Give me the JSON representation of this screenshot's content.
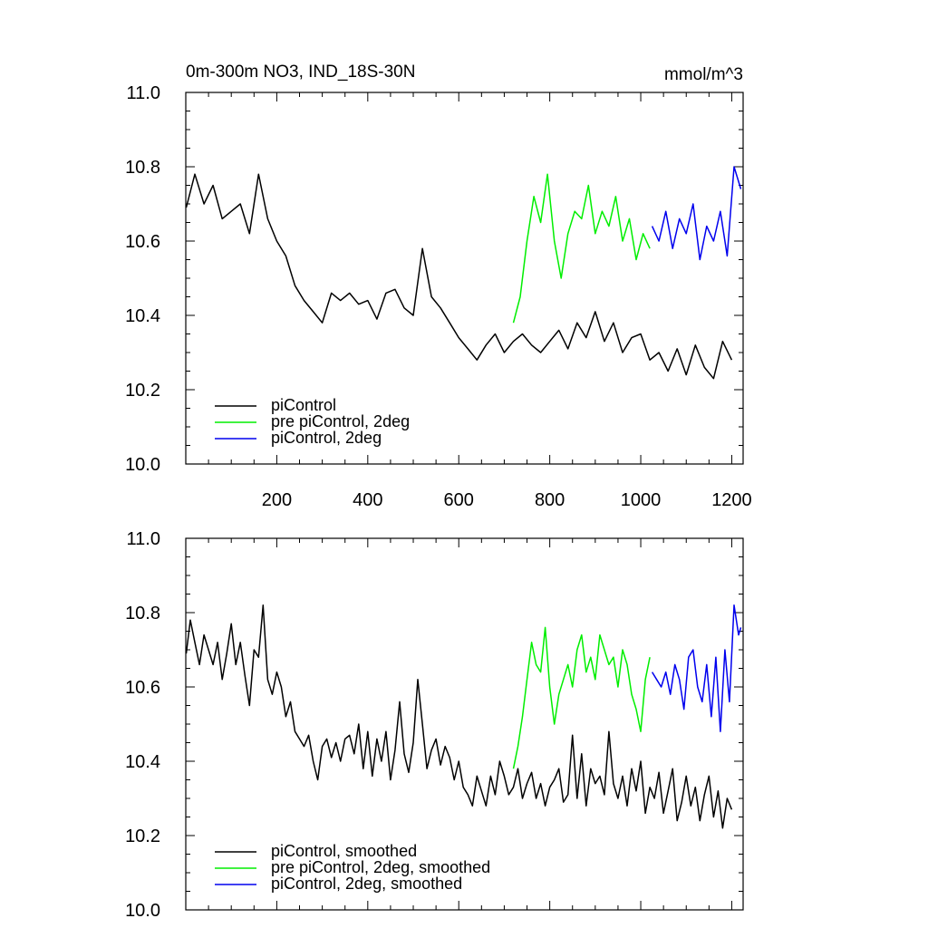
{
  "chart_data": [
    {
      "type": "line",
      "title": "0m-300m NO3, IND_18S-30N",
      "units": "mmol/m^3",
      "xlabel": "",
      "ylabel": "",
      "xlim": [
        0,
        1225
      ],
      "ylim": [
        10.0,
        11.0
      ],
      "xticks": [
        200,
        400,
        600,
        800,
        1000,
        1200
      ],
      "yticks": [
        10.0,
        10.2,
        10.4,
        10.6,
        10.8,
        11.0
      ],
      "show_x_tick_labels": true,
      "legend": {
        "position": "bottom-left"
      },
      "series": [
        {
          "name": "piControl",
          "color": "#000000",
          "x": [
            1,
            20,
            40,
            60,
            80,
            100,
            120,
            140,
            160,
            180,
            200,
            220,
            240,
            260,
            280,
            300,
            320,
            340,
            360,
            380,
            400,
            420,
            440,
            460,
            480,
            500,
            520,
            540,
            560,
            580,
            600,
            620,
            640,
            660,
            680,
            700,
            720,
            740,
            760,
            780,
            800,
            820,
            840,
            860,
            880,
            900,
            920,
            940,
            960,
            980,
            1000,
            1020,
            1040,
            1060,
            1080,
            1100,
            1120,
            1140,
            1160,
            1180,
            1200
          ],
          "values": [
            10.69,
            10.78,
            10.7,
            10.75,
            10.66,
            10.68,
            10.7,
            10.62,
            10.78,
            10.66,
            10.6,
            10.56,
            10.48,
            10.44,
            10.41,
            10.38,
            10.46,
            10.44,
            10.46,
            10.43,
            10.44,
            10.39,
            10.46,
            10.47,
            10.42,
            10.4,
            10.58,
            10.45,
            10.42,
            10.38,
            10.34,
            10.31,
            10.28,
            10.32,
            10.35,
            10.3,
            10.33,
            10.35,
            10.32,
            10.3,
            10.33,
            10.36,
            10.31,
            10.38,
            10.34,
            10.41,
            10.33,
            10.38,
            10.3,
            10.34,
            10.35,
            10.28,
            10.3,
            10.25,
            10.31,
            10.24,
            10.32,
            10.26,
            10.23,
            10.33,
            10.28
          ]
        },
        {
          "name": "pre piControl, 2deg",
          "color": "#00ee00",
          "x": [
            720,
            735,
            750,
            765,
            780,
            795,
            810,
            825,
            840,
            855,
            870,
            885,
            900,
            915,
            930,
            945,
            960,
            975,
            990,
            1005,
            1020
          ],
          "values": [
            10.38,
            10.45,
            10.6,
            10.72,
            10.65,
            10.78,
            10.6,
            10.5,
            10.62,
            10.68,
            10.66,
            10.75,
            10.62,
            10.68,
            10.64,
            10.72,
            10.6,
            10.66,
            10.55,
            10.62,
            10.58
          ]
        },
        {
          "name": "piControl, 2deg",
          "color": "#0000ee",
          "x": [
            1025,
            1040,
            1055,
            1070,
            1085,
            1100,
            1115,
            1130,
            1145,
            1160,
            1175,
            1190,
            1205,
            1220
          ],
          "values": [
            10.64,
            10.6,
            10.68,
            10.58,
            10.66,
            10.62,
            10.7,
            10.55,
            10.64,
            10.6,
            10.68,
            10.56,
            10.8,
            10.74
          ]
        }
      ]
    },
    {
      "type": "line",
      "title": "",
      "xlabel": "",
      "ylabel": "",
      "xlim": [
        0,
        1225
      ],
      "ylim": [
        10.0,
        11.0
      ],
      "xticks": [
        200,
        400,
        600,
        800,
        1000,
        1200
      ],
      "yticks": [
        10.0,
        10.2,
        10.4,
        10.6,
        10.8,
        11.0
      ],
      "show_x_tick_labels": false,
      "legend": {
        "position": "bottom-left"
      },
      "series": [
        {
          "name": "piControl, smoothed",
          "color": "#000000",
          "x": [
            1,
            10,
            20,
            30,
            40,
            50,
            60,
            70,
            80,
            90,
            100,
            110,
            120,
            130,
            140,
            150,
            160,
            170,
            180,
            190,
            200,
            210,
            220,
            230,
            240,
            250,
            260,
            270,
            280,
            290,
            300,
            310,
            320,
            330,
            340,
            350,
            360,
            370,
            380,
            390,
            400,
            410,
            420,
            430,
            440,
            450,
            460,
            470,
            480,
            490,
            500,
            510,
            520,
            530,
            540,
            550,
            560,
            570,
            580,
            590,
            600,
            610,
            620,
            630,
            640,
            650,
            660,
            670,
            680,
            690,
            700,
            710,
            720,
            730,
            740,
            750,
            760,
            770,
            780,
            790,
            800,
            810,
            820,
            830,
            840,
            850,
            860,
            870,
            880,
            890,
            900,
            910,
            920,
            930,
            940,
            950,
            960,
            970,
            980,
            990,
            1000,
            1010,
            1020,
            1030,
            1040,
            1050,
            1060,
            1070,
            1080,
            1090,
            1100,
            1110,
            1120,
            1130,
            1140,
            1150,
            1160,
            1170,
            1180,
            1190,
            1200
          ],
          "values": [
            10.69,
            10.78,
            10.72,
            10.66,
            10.74,
            10.7,
            10.66,
            10.72,
            10.62,
            10.69,
            10.77,
            10.66,
            10.72,
            10.63,
            10.55,
            10.7,
            10.68,
            10.82,
            10.62,
            10.58,
            10.64,
            10.6,
            10.52,
            10.56,
            10.48,
            10.46,
            10.44,
            10.47,
            10.4,
            10.35,
            10.44,
            10.46,
            10.41,
            10.45,
            10.4,
            10.46,
            10.47,
            10.42,
            10.5,
            10.38,
            10.48,
            10.36,
            10.46,
            10.4,
            10.48,
            10.35,
            10.43,
            10.56,
            10.42,
            10.37,
            10.45,
            10.62,
            10.5,
            10.38,
            10.43,
            10.46,
            10.39,
            10.44,
            10.41,
            10.35,
            10.4,
            10.33,
            10.31,
            10.28,
            10.36,
            10.32,
            10.28,
            10.36,
            10.31,
            10.4,
            10.36,
            10.31,
            10.33,
            10.38,
            10.3,
            10.34,
            10.37,
            10.3,
            10.34,
            10.28,
            10.33,
            10.35,
            10.38,
            10.29,
            10.31,
            10.47,
            10.3,
            10.42,
            10.28,
            10.38,
            10.34,
            10.36,
            10.31,
            10.48,
            10.34,
            10.3,
            10.36,
            10.28,
            10.38,
            10.32,
            10.4,
            10.26,
            10.33,
            10.3,
            10.37,
            10.26,
            10.32,
            10.38,
            10.24,
            10.29,
            10.36,
            10.28,
            10.33,
            10.24,
            10.31,
            10.36,
            10.25,
            10.32,
            10.22,
            10.3,
            10.27
          ]
        },
        {
          "name": "pre piControl, 2deg, smoothed",
          "color": "#00ee00",
          "x": [
            720,
            730,
            740,
            750,
            760,
            770,
            780,
            790,
            800,
            810,
            820,
            830,
            840,
            850,
            860,
            870,
            880,
            890,
            900,
            910,
            920,
            930,
            940,
            950,
            960,
            970,
            980,
            990,
            1000,
            1010,
            1020
          ],
          "values": [
            10.38,
            10.44,
            10.52,
            10.62,
            10.72,
            10.66,
            10.64,
            10.76,
            10.6,
            10.5,
            10.58,
            10.62,
            10.66,
            10.6,
            10.7,
            10.74,
            10.64,
            10.68,
            10.62,
            10.74,
            10.7,
            10.66,
            10.68,
            10.6,
            10.7,
            10.66,
            10.58,
            10.54,
            10.48,
            10.62,
            10.68
          ]
        },
        {
          "name": "piControl, 2deg, smoothed",
          "color": "#0000ee",
          "x": [
            1025,
            1035,
            1045,
            1055,
            1065,
            1075,
            1085,
            1095,
            1105,
            1115,
            1125,
            1135,
            1145,
            1155,
            1165,
            1175,
            1185,
            1195,
            1205,
            1215,
            1220
          ],
          "values": [
            10.64,
            10.62,
            10.6,
            10.64,
            10.58,
            10.66,
            10.62,
            10.54,
            10.68,
            10.7,
            10.6,
            10.56,
            10.66,
            10.52,
            10.68,
            10.48,
            10.7,
            10.56,
            10.82,
            10.74,
            10.76
          ]
        }
      ]
    }
  ]
}
